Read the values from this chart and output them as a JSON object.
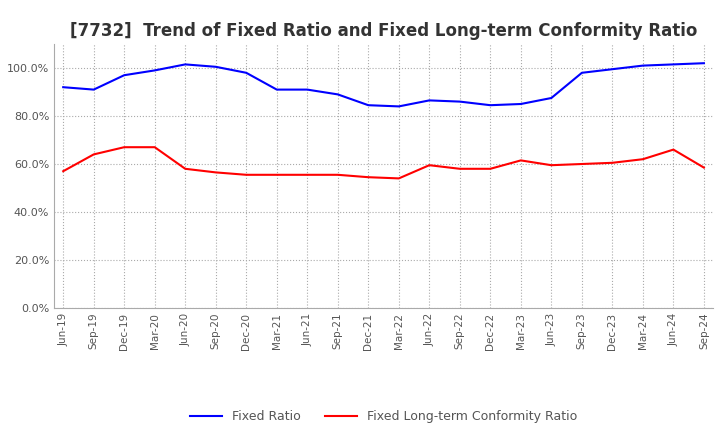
{
  "title": "[7732]  Trend of Fixed Ratio and Fixed Long-term Conformity Ratio",
  "x_labels": [
    "Jun-19",
    "Sep-19",
    "Dec-19",
    "Mar-20",
    "Jun-20",
    "Sep-20",
    "Dec-20",
    "Mar-21",
    "Jun-21",
    "Sep-21",
    "Dec-21",
    "Mar-22",
    "Jun-22",
    "Sep-22",
    "Dec-22",
    "Mar-23",
    "Jun-23",
    "Sep-23",
    "Dec-23",
    "Mar-24",
    "Jun-24",
    "Sep-24"
  ],
  "fixed_ratio": [
    92.0,
    91.0,
    97.0,
    99.0,
    101.5,
    100.5,
    98.0,
    91.0,
    91.0,
    89.0,
    84.5,
    84.0,
    86.5,
    86.0,
    84.5,
    85.0,
    87.5,
    98.0,
    99.5,
    101.0,
    101.5,
    102.0
  ],
  "fixed_lt_ratio": [
    57.0,
    64.0,
    67.0,
    67.0,
    58.0,
    56.5,
    55.5,
    55.5,
    55.5,
    55.5,
    54.5,
    54.0,
    59.5,
    58.0,
    58.0,
    61.5,
    59.5,
    60.0,
    60.5,
    62.0,
    66.0,
    58.5
  ],
  "line_color_blue": "#0000FF",
  "line_color_red": "#FF0000",
  "ylim": [
    0,
    110
  ],
  "yticks": [
    0,
    20,
    40,
    60,
    80,
    100
  ],
  "background_color": "#ffffff",
  "title_fontsize": 12,
  "legend_labels": [
    "Fixed Ratio",
    "Fixed Long-term Conformity Ratio"
  ]
}
